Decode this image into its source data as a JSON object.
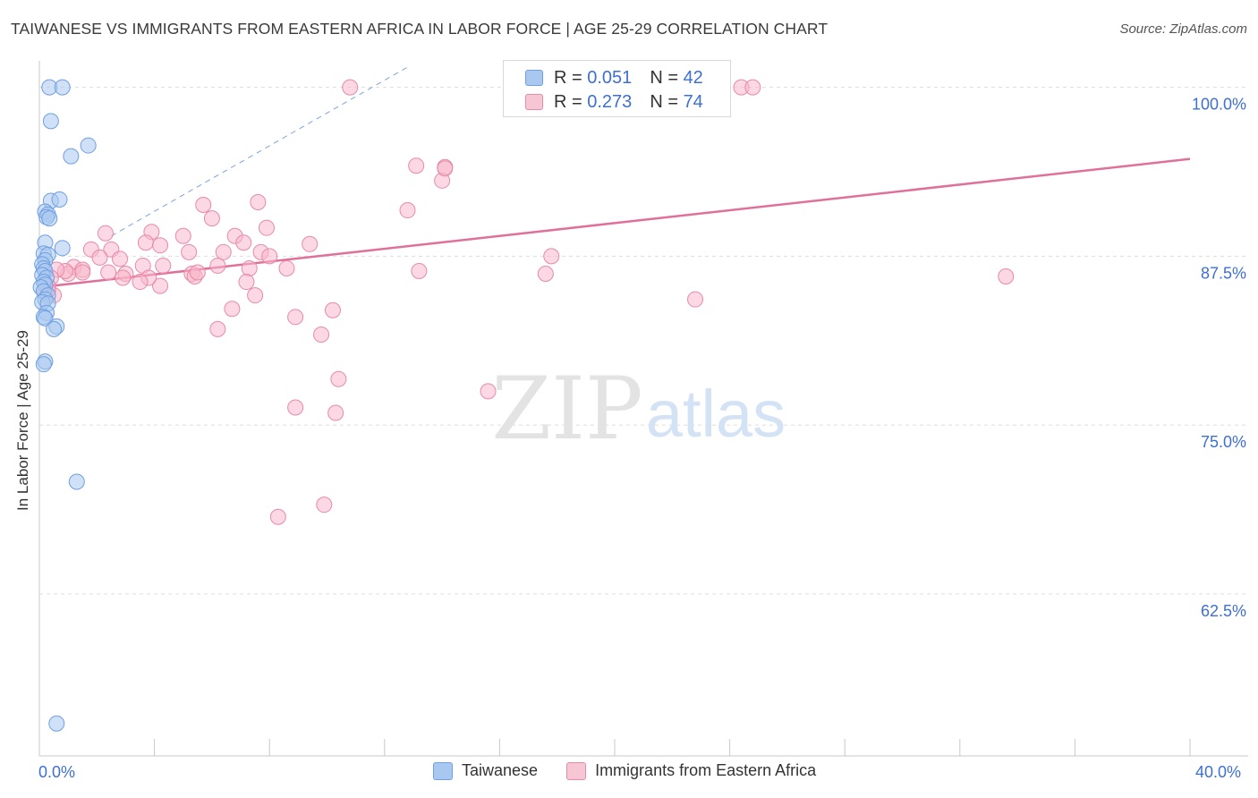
{
  "title": "TAIWANESE VS IMMIGRANTS FROM EASTERN AFRICA IN LABOR FORCE | AGE 25-29 CORRELATION CHART",
  "source": "Source: ZipAtlas.com",
  "watermark": {
    "zip": "ZIP",
    "atlas": "atlas"
  },
  "legend_top": [
    {
      "r_label": "R = ",
      "r_value": "0.051",
      "n_label": "N = ",
      "n_value": "42"
    },
    {
      "r_label": "R = ",
      "r_value": "0.273",
      "n_label": "N = ",
      "n_value": "74"
    }
  ],
  "colors": {
    "blue_fill": "#a9c8f0",
    "blue_stroke": "#6f9fe0",
    "pink_fill": "#f7b8cc",
    "pink_stroke": "#e88aa8",
    "pink_line": "#e0709a",
    "blue_line": "#7aa4e0",
    "axis_text": "#3d6fd4",
    "grid": "#dddddd"
  },
  "chart_data": {
    "type": "scatter",
    "title": "TAIWANESE VS IMMIGRANTS FROM EASTERN AFRICA IN LABOR FORCE | AGE 25-29 CORRELATION CHART",
    "xlabel": "",
    "ylabel": "In Labor Force | Age 25-29",
    "xlim": [
      0,
      40
    ],
    "ylim": [
      50.5,
      101.5
    ],
    "x_tick_labels": [
      "0.0%",
      "40.0%"
    ],
    "y_ticks": [
      {
        "value": 100.0,
        "label": "100.0%"
      },
      {
        "value": 87.5,
        "label": "87.5%"
      },
      {
        "value": 75.0,
        "label": "75.0%"
      },
      {
        "value": 62.5,
        "label": "62.5%"
      }
    ],
    "series": [
      {
        "name": "Taiwanese",
        "r": 0.051,
        "n": 42,
        "points": [
          [
            0.35,
            100
          ],
          [
            0.8,
            100
          ],
          [
            0.4,
            97.5
          ],
          [
            1.7,
            95.7
          ],
          [
            1.1,
            94.9
          ],
          [
            0.4,
            91.6
          ],
          [
            0.7,
            91.7
          ],
          [
            0.2,
            90.8
          ],
          [
            0.3,
            90.6
          ],
          [
            0.25,
            90.4
          ],
          [
            0.35,
            90.3
          ],
          [
            0.2,
            88.5
          ],
          [
            0.8,
            88.1
          ],
          [
            0.15,
            87.7
          ],
          [
            0.3,
            87.6
          ],
          [
            0.2,
            87.2
          ],
          [
            0.1,
            86.9
          ],
          [
            0.15,
            86.6
          ],
          [
            0.2,
            86.4
          ],
          [
            0.1,
            86.1
          ],
          [
            0.25,
            85.9
          ],
          [
            0.15,
            85.6
          ],
          [
            0.2,
            85.4
          ],
          [
            0.05,
            85.2
          ],
          [
            0.15,
            84.9
          ],
          [
            0.3,
            84.6
          ],
          [
            0.2,
            84.3
          ],
          [
            0.1,
            84.1
          ],
          [
            0.3,
            84.0
          ],
          [
            0.25,
            83.3
          ],
          [
            0.15,
            83.0
          ],
          [
            0.2,
            82.9
          ],
          [
            0.6,
            82.3
          ],
          [
            0.5,
            82.1
          ],
          [
            0.2,
            79.7
          ],
          [
            0.15,
            79.5
          ],
          [
            1.3,
            70.8
          ],
          [
            0.6,
            52.9
          ]
        ]
      },
      {
        "name": "Immigrants from Eastern Africa",
        "r": 0.273,
        "n": 74,
        "points": [
          [
            10.8,
            100
          ],
          [
            23.5,
            100
          ],
          [
            24.4,
            100
          ],
          [
            24.8,
            100
          ],
          [
            13.1,
            94.2
          ],
          [
            14.0,
            93.1
          ],
          [
            14.1,
            94.1
          ],
          [
            14.1,
            94.0
          ],
          [
            5.7,
            91.3
          ],
          [
            7.6,
            91.5
          ],
          [
            12.8,
            90.9
          ],
          [
            6.0,
            90.3
          ],
          [
            7.9,
            89.6
          ],
          [
            2.3,
            89.2
          ],
          [
            3.9,
            89.3
          ],
          [
            6.8,
            89.0
          ],
          [
            5.0,
            89.0
          ],
          [
            7.1,
            88.5
          ],
          [
            3.7,
            88.5
          ],
          [
            9.4,
            88.4
          ],
          [
            4.2,
            88.3
          ],
          [
            1.8,
            88.0
          ],
          [
            2.5,
            88.0
          ],
          [
            6.4,
            87.8
          ],
          [
            7.7,
            87.8
          ],
          [
            5.2,
            87.8
          ],
          [
            8.0,
            87.5
          ],
          [
            2.1,
            87.4
          ],
          [
            2.8,
            87.3
          ],
          [
            3.6,
            86.8
          ],
          [
            8.6,
            86.6
          ],
          [
            17.8,
            87.5
          ],
          [
            4.3,
            86.8
          ],
          [
            6.2,
            86.8
          ],
          [
            1.2,
            86.7
          ],
          [
            1.5,
            86.5
          ],
          [
            7.3,
            86.6
          ],
          [
            13.2,
            86.4
          ],
          [
            17.6,
            86.2
          ],
          [
            33.6,
            86.0
          ],
          [
            5.3,
            86.2
          ],
          [
            2.4,
            86.3
          ],
          [
            5.4,
            86.0
          ],
          [
            1.5,
            86.3
          ],
          [
            1.0,
            86.2
          ],
          [
            0.9,
            86.4
          ],
          [
            3.0,
            86.2
          ],
          [
            5.5,
            86.3
          ],
          [
            4.2,
            85.3
          ],
          [
            3.8,
            85.9
          ],
          [
            7.2,
            85.6
          ],
          [
            3.5,
            85.6
          ],
          [
            2.9,
            85.9
          ],
          [
            0.6,
            86.5
          ],
          [
            0.4,
            85.9
          ],
          [
            0.3,
            85.3
          ],
          [
            7.5,
            84.6
          ],
          [
            22.8,
            84.3
          ],
          [
            6.7,
            83.6
          ],
          [
            10.2,
            83.5
          ],
          [
            8.9,
            83.0
          ],
          [
            6.2,
            82.1
          ],
          [
            9.8,
            81.7
          ],
          [
            10.4,
            78.4
          ],
          [
            15.6,
            77.5
          ],
          [
            8.9,
            76.3
          ],
          [
            10.3,
            75.9
          ],
          [
            8.3,
            68.2
          ],
          [
            9.9,
            69.1
          ],
          [
            0.5,
            84.6
          ],
          [
            0.2,
            84.8
          ],
          [
            0.3,
            85.0
          ]
        ]
      }
    ],
    "trend_lines": [
      {
        "series": "Immigrants from Eastern Africa",
        "style": "solid",
        "from": [
          0,
          85.2
        ],
        "to": [
          40,
          94.7
        ]
      },
      {
        "series": "Taiwanese",
        "style": "dashed",
        "from": [
          2.5,
          89.0
        ],
        "to": [
          12.8,
          101.5
        ]
      }
    ],
    "grid": true,
    "legend": [
      "Taiwanese",
      "Immigrants from Eastern Africa"
    ]
  }
}
